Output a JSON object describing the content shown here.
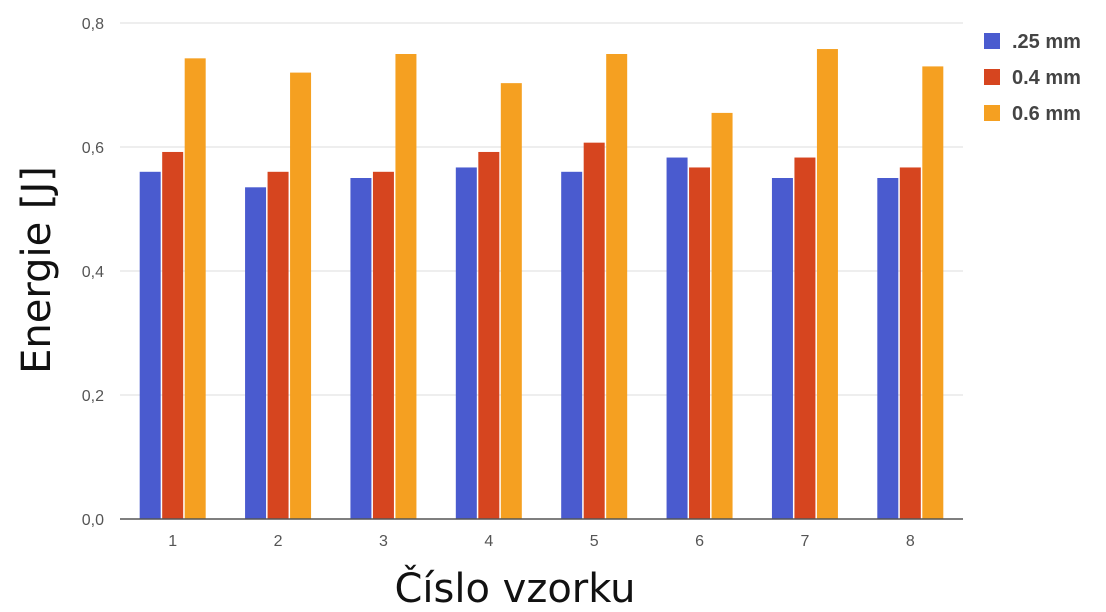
{
  "chart_data": {
    "type": "bar",
    "title": "",
    "xlabel": "Číslo vzorku",
    "ylabel": "Energie [J]",
    "categories": [
      "1",
      "2",
      "3",
      "4",
      "5",
      "6",
      "7",
      "8"
    ],
    "ylim": [
      0,
      0.8
    ],
    "yticks": [
      "0,0",
      "0,2",
      "0,4",
      "0,6",
      "0,8"
    ],
    "ytick_values": [
      0,
      0.2,
      0.4,
      0.6,
      0.8
    ],
    "grid": true,
    "legend_position": "top-right",
    "series": [
      {
        "name": ".25 mm",
        "color": "#4a5bcf",
        "values": [
          0.56,
          0.535,
          0.55,
          0.567,
          0.56,
          0.583,
          0.55,
          0.55
        ]
      },
      {
        "name": "0.4 mm",
        "color": "#d6451f",
        "values": [
          0.592,
          0.56,
          0.56,
          0.592,
          0.607,
          0.567,
          0.583,
          0.567
        ]
      },
      {
        "name": "0.6 mm",
        "color": "#f5a021",
        "values": [
          0.743,
          0.72,
          0.75,
          0.703,
          0.75,
          0.655,
          0.758,
          0.73
        ]
      }
    ]
  }
}
